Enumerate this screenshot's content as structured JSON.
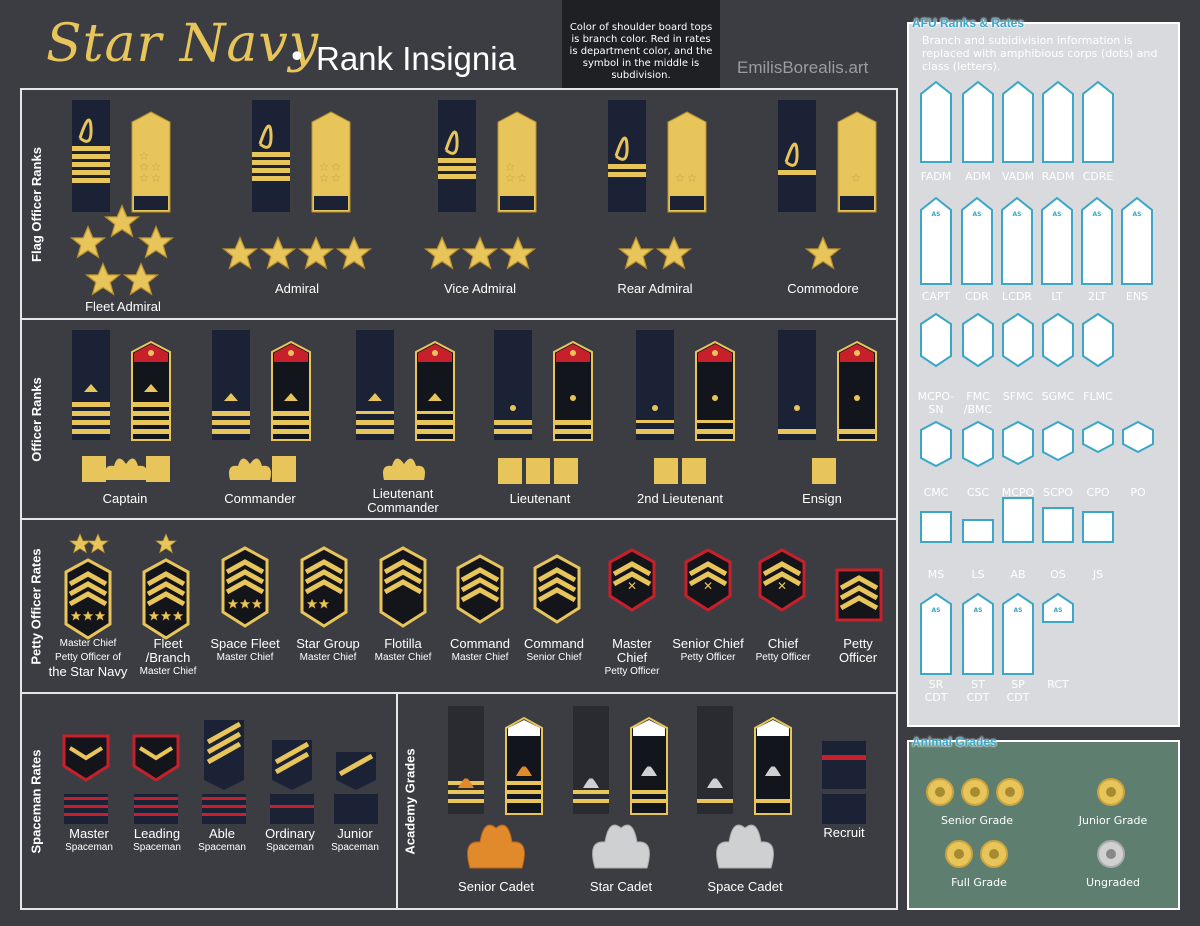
{
  "header": {
    "title_script": "Star Navy",
    "title_dot": "•",
    "title_main": "Rank Insignia",
    "note": "Color of shoulder board tops is branch color. Red in rates is department color, and the symbol in the middle is subdivision.",
    "credit": "EmilisBorealis.art"
  },
  "colors": {
    "gold": "#e8c55a",
    "navy": "#1c2236",
    "red": "#c8202a",
    "panel": "#3c3d42",
    "afu": "#3aa6c8"
  },
  "sections": [
    {
      "label": "Flag Officer Ranks"
    },
    {
      "label": "Officer Ranks"
    },
    {
      "label": "Petty Officer Rates"
    },
    {
      "label": "Spaceman Rates"
    },
    {
      "label": "Academy Grades"
    }
  ],
  "flag_ranks": [
    {
      "name": "Fleet Admiral",
      "stars": 5
    },
    {
      "name": "Admiral",
      "stars": 4
    },
    {
      "name": "Vice Admiral",
      "stars": 3
    },
    {
      "name": "Rear Admiral",
      "stars": 2
    },
    {
      "name": "Commodore",
      "stars": 1
    }
  ],
  "officer_ranks": [
    {
      "name": "Captain"
    },
    {
      "name": "Commander"
    },
    {
      "name": "Lieutenant Commander"
    },
    {
      "name": "Lieutenant"
    },
    {
      "name": "2nd Lieutenant"
    },
    {
      "name": "Ensign"
    }
  ],
  "petty_rates": [
    {
      "l1": "Master Chief",
      "l2": "Petty Officer of",
      "l3": "the Star Navy"
    },
    {
      "l1": "Fleet",
      "l2": "/Branch",
      "l3": "Master Chief"
    },
    {
      "l1": "Space Fleet",
      "l2": "Master Chief"
    },
    {
      "l1": "Star Group",
      "l2": "Master Chief"
    },
    {
      "l1": "Flotilla",
      "l2": "Master Chief"
    },
    {
      "l1": "Command",
      "l2": "Master Chief"
    },
    {
      "l1": "Command",
      "l2": "Senior Chief"
    },
    {
      "l1": "Master",
      "l2": "Chief",
      "l3": "Petty Officer"
    },
    {
      "l1": "Senior Chief",
      "l2": "Petty Officer"
    },
    {
      "l1": "Chief",
      "l2": "Petty Officer"
    },
    {
      "l1": "Petty",
      "l2": "Officer"
    }
  ],
  "spaceman_rates": [
    {
      "l1": "Master",
      "l2": "Spaceman"
    },
    {
      "l1": "Leading",
      "l2": "Spaceman"
    },
    {
      "l1": "Able",
      "l2": "Spaceman"
    },
    {
      "l1": "Ordinary",
      "l2": "Spaceman"
    },
    {
      "l1": "Junior",
      "l2": "Spaceman"
    }
  ],
  "academy_grades": [
    {
      "name": "Senior Cadet"
    },
    {
      "name": "Star Cadet"
    },
    {
      "name": "Space Cadet"
    },
    {
      "name": "Recruit"
    }
  ],
  "afu": {
    "title": "AFU Ranks & Rates",
    "desc": "Branch and subidivision information is replaced with amphibious corps (dots) and class (letters).",
    "rows": [
      [
        "FADM",
        "ADM",
        "VADM",
        "RADM",
        "CDRE"
      ],
      [
        "CAPT",
        "CDR",
        "LCDR",
        "LT",
        "2LT",
        "ENS"
      ],
      [
        "MCPO-\nSN",
        "FMC\n/BMC",
        "SFMC",
        "SGMC",
        "FLMC"
      ],
      [
        "CMC",
        "CSC",
        "MCPO",
        "SCPO",
        "CPO",
        "PO"
      ],
      [
        "MS",
        "LS",
        "AB",
        "OS",
        "JS"
      ],
      [
        "SR\nCDT",
        "ST\nCDT",
        "SP\nCDT",
        "RCT"
      ]
    ],
    "badge_text": "AS"
  },
  "animal": {
    "title": "Animal Grades",
    "grades": [
      "Senior Grade",
      "Junior Grade",
      "Full Grade",
      "Ungraded"
    ]
  }
}
